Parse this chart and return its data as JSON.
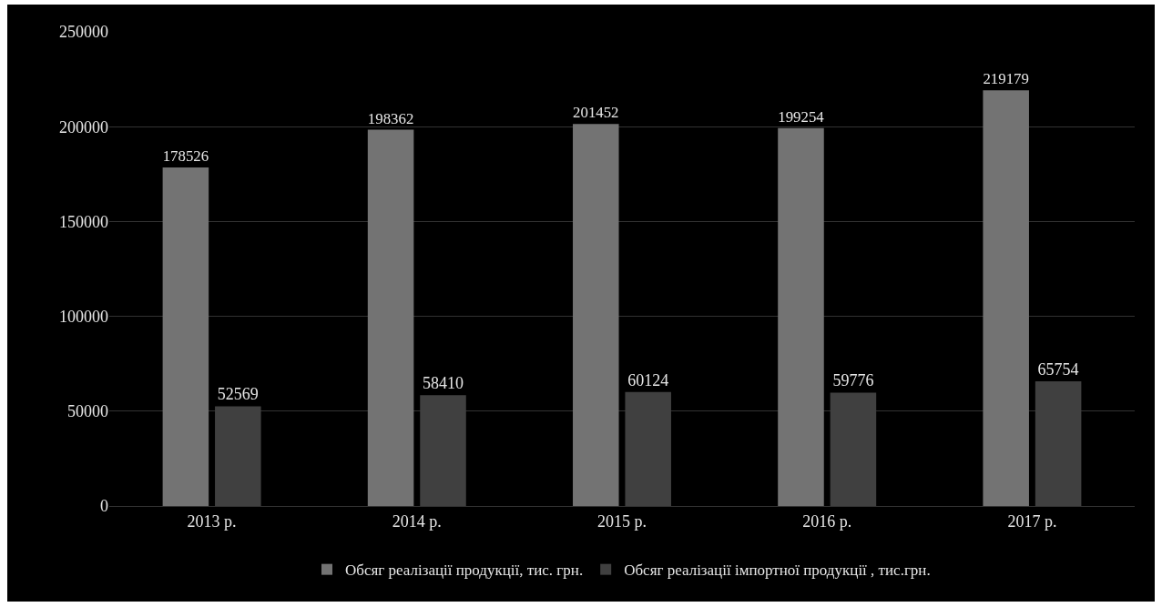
{
  "chart_data": {
    "type": "bar",
    "categories": [
      "2013 р.",
      "2014 р.",
      "2015 р.",
      "2016 р.",
      "2017 р."
    ],
    "series": [
      {
        "name": "Обсяг реалізації продукції, тис. грн.",
        "color": "#737373",
        "values": [
          178526,
          198362,
          201452,
          199254,
          219179
        ]
      },
      {
        "name": "Обсяг реалізації імпортної продукції , тис.грн.",
        "color": "#404040",
        "values": [
          52569,
          58410,
          60124,
          59776,
          65754
        ]
      }
    ],
    "ylim": [
      0,
      250000
    ],
    "yticks": [
      0,
      50000,
      100000,
      150000,
      200000,
      250000
    ],
    "grid": "y",
    "legend": "bottom",
    "data_labels": true
  }
}
